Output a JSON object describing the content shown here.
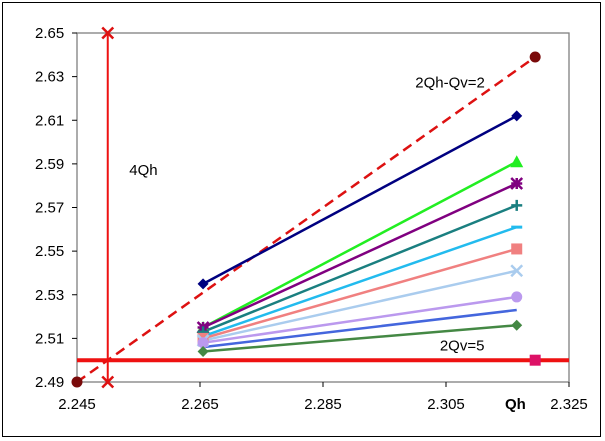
{
  "chart_data": {
    "type": "line",
    "xlabel": "Qh",
    "ylabel": "",
    "xlim": [
      2.245,
      2.325
    ],
    "ylim": [
      2.49,
      2.65
    ],
    "x_ticks": [
      "2.245",
      "2.265",
      "2.285",
      "2.305",
      "2.325"
    ],
    "y_ticks": [
      "2.49",
      "2.51",
      "2.53",
      "2.55",
      "2.57",
      "2.59",
      "2.61",
      "2.63",
      "2.65"
    ],
    "grid": false,
    "annotations": [
      {
        "text": "2Qh-Qv=2",
        "x": 2.3,
        "y": 2.625
      },
      {
        "text": "2Qv=5",
        "x": 2.304,
        "y": 2.5045
      },
      {
        "text": "4Qh",
        "x": 2.2535,
        "y": 2.585
      }
    ],
    "constraint_lines": [
      {
        "label": "2Qh-Qv=2",
        "color": "#dd1111",
        "dash": true,
        "points": [
          [
            2.245,
            2.49
          ],
          [
            2.3195,
            2.639
          ]
        ]
      },
      {
        "label": "2Qv=5",
        "color": "#ee1111",
        "dash": false,
        "points": [
          [
            2.245,
            2.5
          ],
          [
            2.3195,
            2.5
          ]
        ]
      },
      {
        "label": "vertical",
        "color": "#ee1111",
        "dash": false,
        "points": [
          [
            2.25,
            2.49
          ],
          [
            2.25,
            2.65
          ]
        ]
      }
    ],
    "series": [
      {
        "color": "#000080",
        "marker": "diamond",
        "points": [
          [
            2.2655,
            2.535
          ],
          [
            2.3165,
            2.612
          ]
        ]
      },
      {
        "color": "#22ee22",
        "marker": "triangle",
        "points": [
          [
            2.2655,
            2.515
          ],
          [
            2.3165,
            2.591
          ]
        ]
      },
      {
        "color": "#800080",
        "marker": "star",
        "points": [
          [
            2.2655,
            2.515
          ],
          [
            2.3165,
            2.581
          ]
        ]
      },
      {
        "color": "#1a7f80",
        "marker": "plus",
        "points": [
          [
            2.2655,
            2.513
          ],
          [
            2.3165,
            2.571
          ]
        ]
      },
      {
        "color": "#22bbee",
        "marker": "dash",
        "points": [
          [
            2.2655,
            2.511
          ],
          [
            2.3165,
            2.561
          ]
        ]
      },
      {
        "color": "#f08080",
        "marker": "square",
        "points": [
          [
            2.2655,
            2.51
          ],
          [
            2.3165,
            2.551
          ]
        ]
      },
      {
        "color": "#aaccee",
        "marker": "x",
        "points": [
          [
            2.2655,
            2.509
          ],
          [
            2.3165,
            2.541
          ]
        ]
      },
      {
        "color": "#bb99ee",
        "marker": "circle",
        "points": [
          [
            2.2655,
            2.508
          ],
          [
            2.3165,
            2.529
          ]
        ]
      },
      {
        "color": "#4466dd",
        "marker": "none",
        "points": [
          [
            2.2655,
            2.506
          ],
          [
            2.3165,
            2.523
          ]
        ]
      },
      {
        "color": "#448844",
        "marker": "diamond",
        "points": [
          [
            2.2655,
            2.504
          ],
          [
            2.3165,
            2.516
          ]
        ]
      }
    ],
    "special_points": [
      {
        "color": "#7a0a0a",
        "marker": "circle",
        "x": 2.3195,
        "y": 2.639
      },
      {
        "color": "#7a0a0a",
        "marker": "circle",
        "x": 2.245,
        "y": 2.49
      },
      {
        "color": "#dd1166",
        "marker": "square",
        "x": 2.3195,
        "y": 2.5
      },
      {
        "color": "#dd1111",
        "marker": "x",
        "x": 2.25,
        "y": 2.65
      },
      {
        "color": "#dd1111",
        "marker": "x",
        "x": 2.25,
        "y": 2.49
      }
    ]
  }
}
